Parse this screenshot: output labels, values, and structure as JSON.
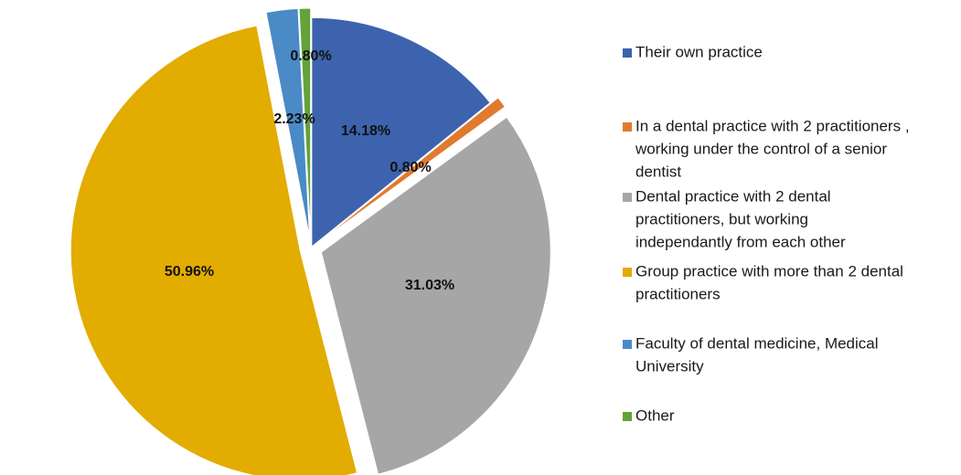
{
  "chart_data": {
    "type": "pie",
    "exploded": true,
    "legend_position": "right",
    "slices": [
      {
        "label": "Their own practice",
        "value": 14.18,
        "value_label": "14.18%",
        "color": "#3d63ae"
      },
      {
        "label": "In a dental practice with 2 practitioners , working under the control of a senior dentist",
        "value": 0.8,
        "value_label": "0.80%",
        "color": "#e07a2e"
      },
      {
        "label": "Dental practice with 2 dental practitioners, but working independantly from each other",
        "value": 31.03,
        "value_label": "31.03%",
        "color": "#a6a6a6"
      },
      {
        "label": "Group practice with more than 2 dental practitioners",
        "value": 50.96,
        "value_label": "50.96%",
        "color": "#e2ac00"
      },
      {
        "label": "Faculty of dental medicine, Medical University",
        "value": 2.23,
        "value_label": "2.23%",
        "color": "#4a8ac6"
      },
      {
        "label": "Other",
        "value": 0.8,
        "value_label": "0.80%",
        "color": "#62a33a"
      }
    ],
    "legend_lines": [
      [
        "Their own practice"
      ],
      [
        "In a dental practice with 2 practitioners ,",
        "working under the control of a senior",
        "dentist"
      ],
      [
        "Dental practice with 2 dental",
        "practitioners, but working",
        "independantly from each other"
      ],
      [
        "Group practice with more than 2 dental",
        "practitioners"
      ],
      [
        "Faculty of dental medicine, Medical",
        "University"
      ],
      [
        "Other"
      ]
    ]
  }
}
